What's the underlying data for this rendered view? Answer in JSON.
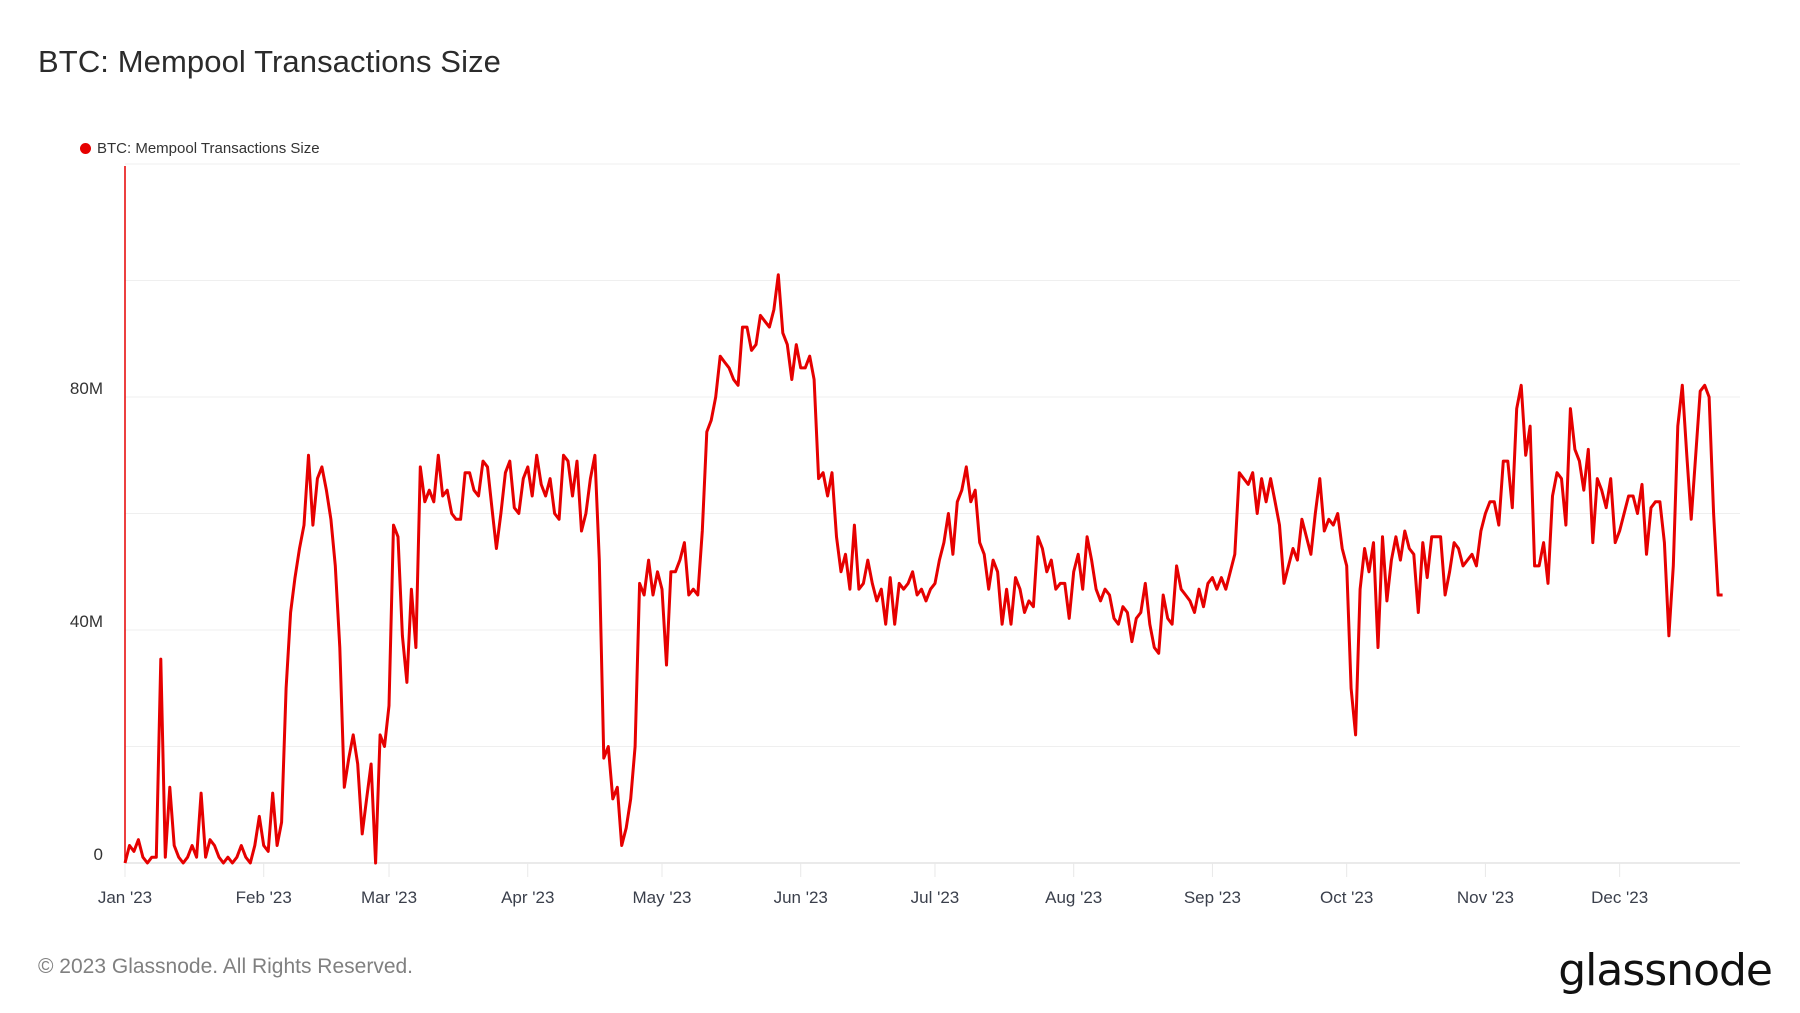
{
  "header": {
    "title": "BTC: Mempool Transactions Size"
  },
  "legend": {
    "items": [
      {
        "label": "BTC: Mempool Transactions Size",
        "color": "#e60000"
      }
    ]
  },
  "footer": {
    "copyright": "© 2023 Glassnode. All Rights Reserved.",
    "logo": "glassnode"
  },
  "colors": {
    "series": "#e60000",
    "grid": "#efefef",
    "axis": "#e60000"
  },
  "chart_data": {
    "type": "line",
    "title": "BTC: Mempool Transactions Size",
    "xlabel": "",
    "ylabel": "",
    "ylim": [
      0,
      120000000
    ],
    "y_ticks": [
      {
        "value": 0,
        "label": "0"
      },
      {
        "value": 40000000,
        "label": "40M"
      },
      {
        "value": 80000000,
        "label": "80M"
      }
    ],
    "y_gridlines": [
      0,
      20,
      40,
      60,
      80,
      100,
      120
    ],
    "x_ticks": [
      {
        "day": 0,
        "label": "Jan '23"
      },
      {
        "day": 31,
        "label": "Feb '23"
      },
      {
        "day": 59,
        "label": "Mar '23"
      },
      {
        "day": 90,
        "label": "Apr '23"
      },
      {
        "day": 120,
        "label": "May '23"
      },
      {
        "day": 151,
        "label": "Jun '23"
      },
      {
        "day": 181,
        "label": "Jul '23"
      },
      {
        "day": 212,
        "label": "Aug '23"
      },
      {
        "day": 243,
        "label": "Sep '23"
      },
      {
        "day": 273,
        "label": "Oct '23"
      },
      {
        "day": 304,
        "label": "Nov '23"
      },
      {
        "day": 334,
        "label": "Dec '23"
      }
    ],
    "grid": true,
    "legend_position": "top-left",
    "series": [
      {
        "name": "BTC: Mempool Transactions Size",
        "unit": "M (millions)",
        "x_start": "2023-01-01",
        "x_step": "1 day",
        "values": [
          0,
          3,
          2,
          4,
          1,
          0,
          1,
          1,
          35,
          1,
          13,
          3,
          1,
          0,
          1,
          3,
          1,
          12,
          1,
          4,
          3,
          1,
          0,
          1,
          0,
          1,
          3,
          1,
          0,
          3,
          8,
          3,
          2,
          12,
          3,
          7,
          30,
          43,
          49,
          54,
          58,
          70,
          58,
          66,
          68,
          64,
          59,
          51,
          37,
          13,
          18,
          22,
          17,
          5,
          11,
          17,
          0,
          22,
          20,
          27,
          58,
          56,
          39,
          31,
          47,
          37,
          68,
          62,
          64,
          62,
          70,
          63,
          64,
          60,
          59,
          59,
          67,
          67,
          64,
          63,
          69,
          68,
          61,
          54,
          60,
          67,
          69,
          61,
          60,
          66,
          68,
          63,
          70,
          65,
          63,
          66,
          60,
          59,
          70,
          69,
          63,
          69,
          57,
          60,
          66,
          70,
          52,
          18,
          20,
          11,
          13,
          3,
          6,
          11,
          20,
          48,
          46,
          52,
          46,
          50,
          47,
          34,
          50,
          50,
          52,
          55,
          46,
          47,
          46,
          57,
          74,
          76,
          80,
          87,
          86,
          85,
          83,
          82,
          92,
          92,
          88,
          89,
          94,
          93,
          92,
          95,
          101,
          91,
          89,
          83,
          89,
          85,
          85,
          87,
          83,
          66,
          67,
          63,
          67,
          56,
          50,
          53,
          47,
          58,
          47,
          48,
          52,
          48,
          45,
          47,
          41,
          49,
          41,
          48,
          47,
          48,
          50,
          46,
          47,
          45,
          47,
          48,
          52,
          55,
          60,
          53,
          62,
          64,
          68,
          62,
          64,
          55,
          53,
          47,
          52,
          50,
          41,
          47,
          41,
          49,
          47,
          43,
          45,
          44,
          56,
          54,
          50,
          52,
          47,
          48,
          48,
          42,
          50,
          53,
          47,
          56,
          52,
          47,
          45,
          47,
          46,
          42,
          41,
          44,
          43,
          38,
          42,
          43,
          48,
          41,
          37,
          36,
          46,
          42,
          41,
          51,
          47,
          46,
          45,
          43,
          47,
          44,
          48,
          49,
          47,
          49,
          47,
          50,
          53,
          67,
          66,
          65,
          67,
          60,
          66,
          62,
          66,
          62,
          58,
          48,
          51,
          54,
          52,
          59,
          56,
          53,
          60,
          66,
          57,
          59,
          58,
          60,
          54,
          51,
          30,
          22,
          47,
          54,
          50,
          55,
          37,
          56,
          45,
          52,
          56,
          52,
          57,
          54,
          53,
          43,
          55,
          49,
          56,
          56,
          56,
          46,
          50,
          55,
          54,
          51,
          52,
          53,
          51,
          57,
          60,
          62,
          62,
          58,
          69,
          69,
          61,
          78,
          82,
          70,
          75,
          51,
          51,
          55,
          48,
          63,
          67,
          66,
          58,
          78,
          71,
          69,
          64,
          71,
          55,
          66,
          64,
          61,
          66,
          55,
          57,
          60,
          63,
          63,
          60,
          65,
          53,
          61,
          62,
          62,
          55,
          39,
          51,
          75,
          82,
          70,
          59,
          70,
          81,
          82,
          80,
          60,
          46,
          46
        ]
      }
    ]
  }
}
